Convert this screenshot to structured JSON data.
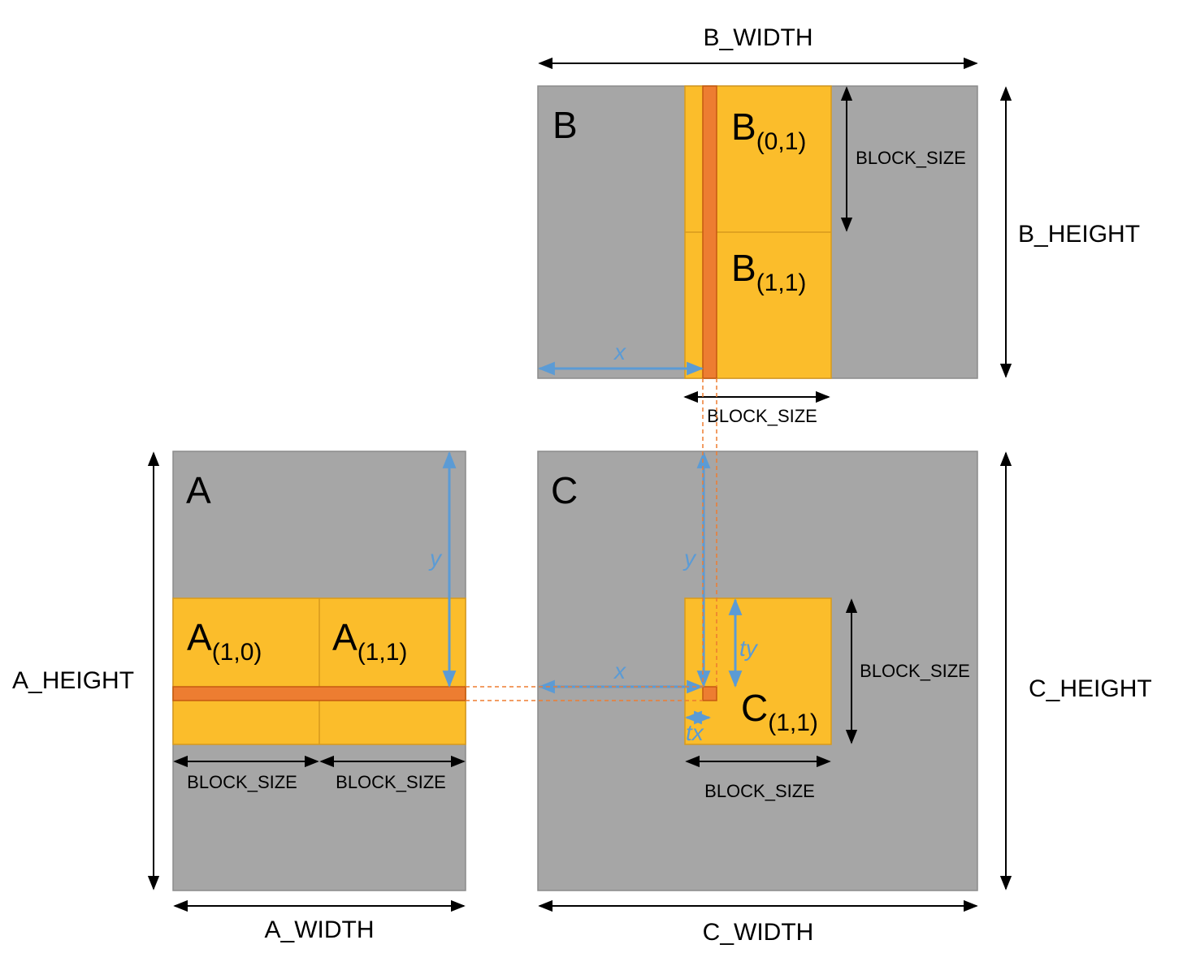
{
  "colors": {
    "matrix": "#a6a6a6",
    "block": "#fbbd2b",
    "block_border": "#d89a1c",
    "highlight": "#ed7d31",
    "index_arrow": "#5b9bd5",
    "dimension_arrow": "#000000"
  },
  "matrix_b": {
    "name": "B",
    "width_label": "B_WIDTH",
    "height_label": "B_HEIGHT",
    "blocks": [
      {
        "base": "B",
        "sub": "(0,1)"
      },
      {
        "base": "B",
        "sub": "(1,1)"
      }
    ],
    "block_size_right": "BLOCK_SIZE",
    "block_size_below": "BLOCK_SIZE",
    "x_label": "x"
  },
  "matrix_a": {
    "name": "A",
    "width_label": "A_WIDTH",
    "height_label": "A_HEIGHT",
    "blocks": [
      {
        "base": "A",
        "sub": "(1,0)"
      },
      {
        "base": "A",
        "sub": "(1,1)"
      }
    ],
    "block_size_left": "BLOCK_SIZE",
    "block_size_right": "BLOCK_SIZE",
    "y_label": "y"
  },
  "matrix_c": {
    "name": "C",
    "width_label": "C_WIDTH",
    "height_label": "C_HEIGHT",
    "block": {
      "base": "C",
      "sub": "(1,1)"
    },
    "block_size_right": "BLOCK_SIZE",
    "block_size_below": "BLOCK_SIZE",
    "x_label": "x",
    "y_label": "y",
    "tx_label": "tx",
    "ty_label": "ty"
  }
}
